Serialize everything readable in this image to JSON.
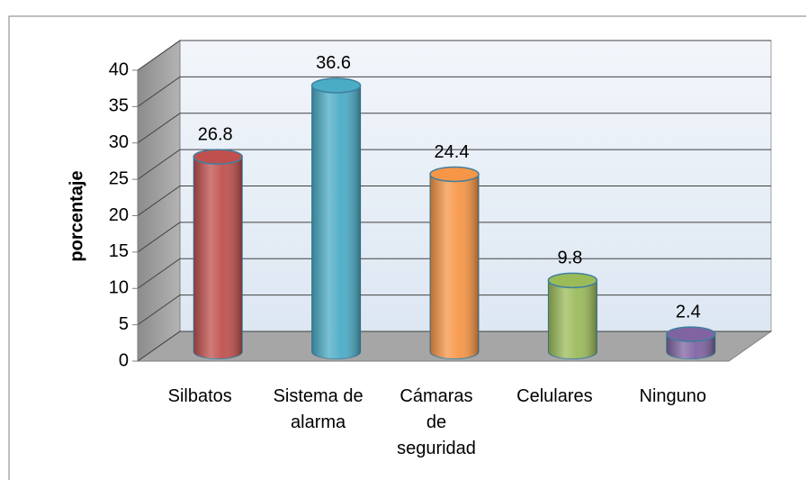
{
  "chart_data": {
    "type": "bar3d",
    "y_label": "porcentaje",
    "categories": [
      "Silbatos",
      "Sistema de\nalarma",
      "Cámaras\nde\nseguridad",
      "Celulares",
      "Ninguno"
    ],
    "values": [
      26.8,
      36.6,
      24.4,
      9.8,
      2.4
    ],
    "colors": [
      "#c0504d",
      "#4bacc6",
      "#f79646",
      "#9bbb59",
      "#8064a2"
    ],
    "ylim": [
      0,
      40
    ],
    "yticks": [
      0,
      5,
      10,
      15,
      20,
      25,
      30,
      35,
      40
    ],
    "grid": true
  }
}
